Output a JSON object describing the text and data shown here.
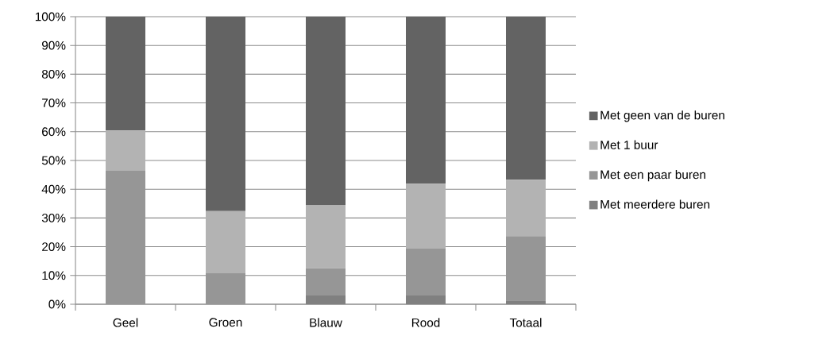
{
  "chart_data": {
    "type": "bar",
    "stacked": true,
    "categories": [
      "Geel",
      "Groen",
      "Blauw",
      "Rood",
      "Totaal"
    ],
    "series": [
      {
        "name": "Met meerdere buren",
        "color": "#808080",
        "values": [
          0,
          0,
          3.0,
          3.0,
          1.3
        ]
      },
      {
        "name": "Met een paar buren",
        "color": "#969696",
        "values": [
          46.4,
          10.8,
          9.5,
          16.3,
          22.4
        ]
      },
      {
        "name": "Met 1 buur",
        "color": "#b3b3b3",
        "values": [
          14.0,
          21.6,
          21.9,
          22.6,
          19.6
        ]
      },
      {
        "name": "Met geen van de buren",
        "color": "#636363",
        "values": [
          39.6,
          67.6,
          65.6,
          58.1,
          56.7
        ]
      }
    ],
    "ylim": [
      0,
      100
    ],
    "yticks": [
      {
        "value": 0,
        "label": "0%"
      },
      {
        "value": 10,
        "label": "10%"
      },
      {
        "value": 20,
        "label": "20%"
      },
      {
        "value": 30,
        "label": "30%"
      },
      {
        "value": 40,
        "label": "40%"
      },
      {
        "value": 50,
        "label": "50%"
      },
      {
        "value": 60,
        "label": "60%"
      },
      {
        "value": 70,
        "label": "70%"
      },
      {
        "value": 80,
        "label": "80%"
      },
      {
        "value": 90,
        "label": "90%"
      },
      {
        "value": 100,
        "label": "100%"
      }
    ],
    "grid": "y",
    "legend": "right"
  }
}
